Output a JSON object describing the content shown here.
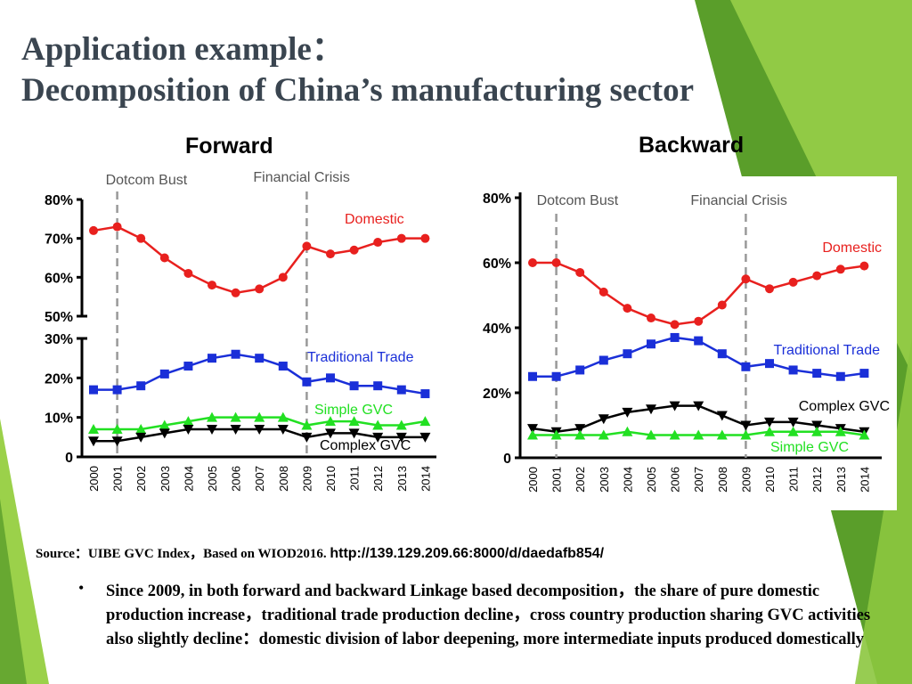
{
  "title": {
    "line1": "Application example：",
    "line2": "Decomposition of China’s manufacturing sector"
  },
  "theme": {
    "green_dark": "#5a9e2a",
    "green_light": "#9bd14a",
    "domestic": "#e8201e",
    "traditional": "#1a2fd8",
    "simple_gvc": "#22e022",
    "complex_gvc": "#000000",
    "event_line": "#999999"
  },
  "chart_data": [
    {
      "id": "forward",
      "type": "line",
      "title": "Forward",
      "x": [
        "2000",
        "2001",
        "2002",
        "2003",
        "2004",
        "2005",
        "2006",
        "2007",
        "2008",
        "2009",
        "2010",
        "2011",
        "2012",
        "2013",
        "2014"
      ],
      "axis_break": true,
      "upper_axis": {
        "ylim": [
          50,
          80
        ],
        "ticks": [
          "50%",
          "60%",
          "70%",
          "80%"
        ],
        "tick_values": [
          50,
          60,
          70,
          80
        ]
      },
      "lower_axis": {
        "ylim": [
          0,
          30
        ],
        "ticks": [
          "0",
          "10%",
          "20%",
          "30%"
        ],
        "tick_values": [
          0,
          10,
          20,
          30
        ]
      },
      "events": [
        {
          "label": "Dotcom Bust",
          "x": "2001"
        },
        {
          "label": "Financial Crisis",
          "x": "2009"
        }
      ],
      "series": [
        {
          "name": "Domestic",
          "axis": "upper",
          "color": "#e8201e",
          "marker": "circle",
          "values": [
            72,
            73,
            70,
            65,
            61,
            58,
            56,
            57,
            60,
            68,
            66,
            67,
            69,
            70,
            70
          ]
        },
        {
          "name": "Traditional Trade",
          "axis": "lower",
          "color": "#1a2fd8",
          "marker": "square",
          "values": [
            17,
            17,
            18,
            21,
            23,
            25,
            26,
            25,
            23,
            19,
            20,
            18,
            18,
            17,
            16
          ]
        },
        {
          "name": "Simple GVC",
          "axis": "lower",
          "color": "#22e022",
          "marker": "triangle-up",
          "values": [
            7,
            7,
            7,
            8,
            9,
            10,
            10,
            10,
            10,
            8,
            9,
            9,
            8,
            8,
            9
          ]
        },
        {
          "name": "Complex GVC",
          "axis": "lower",
          "color": "#000000",
          "marker": "triangle-down",
          "values": [
            4,
            4,
            5,
            6,
            7,
            7,
            7,
            7,
            7,
            5,
            6,
            6,
            5,
            5,
            5
          ]
        }
      ]
    },
    {
      "id": "backward",
      "type": "line",
      "title": "Backward",
      "x": [
        "2000",
        "2001",
        "2002",
        "2003",
        "2004",
        "2005",
        "2006",
        "2007",
        "2008",
        "2009",
        "2010",
        "2011",
        "2012",
        "2013",
        "2014"
      ],
      "axis_break": false,
      "ylim": [
        0,
        80
      ],
      "ticks": [
        "0",
        "20%",
        "40%",
        "60%",
        "80%"
      ],
      "tick_values": [
        0,
        20,
        40,
        60,
        80
      ],
      "events": [
        {
          "label": "Dotcom Bust",
          "x": "2001"
        },
        {
          "label": "Financial Crisis",
          "x": "2009"
        }
      ],
      "series": [
        {
          "name": "Domestic",
          "color": "#e8201e",
          "marker": "circle",
          "values": [
            60,
            60,
            57,
            51,
            46,
            43,
            41,
            42,
            47,
            55,
            52,
            54,
            56,
            58,
            59
          ]
        },
        {
          "name": "Traditional Trade",
          "color": "#1a2fd8",
          "marker": "square",
          "values": [
            25,
            25,
            27,
            30,
            32,
            35,
            37,
            36,
            32,
            28,
            29,
            27,
            26,
            25,
            26
          ]
        },
        {
          "name": "Complex GVC",
          "color": "#000000",
          "marker": "triangle-down",
          "values": [
            9,
            8,
            9,
            12,
            14,
            15,
            16,
            16,
            13,
            10,
            11,
            11,
            10,
            9,
            8
          ]
        },
        {
          "name": "Simple GVC",
          "color": "#22e022",
          "marker": "triangle-up",
          "values": [
            7,
            7,
            7,
            7,
            8,
            7,
            7,
            7,
            7,
            7,
            8,
            8,
            8,
            8,
            7
          ]
        }
      ]
    }
  ],
  "source": {
    "label": "Source：UIBE GVC Index，Based on WIOD2016.",
    "url": "http://139.129.209.66:8000/d/daedafb854/"
  },
  "bullet": {
    "text": "Since 2009, in both forward and backward Linkage based decomposition，the share of pure domestic production increase，traditional trade production decline，cross country production sharing GVC activities also slightly decline：domestic division of labor deepening, more intermediate inputs produced domestically"
  }
}
